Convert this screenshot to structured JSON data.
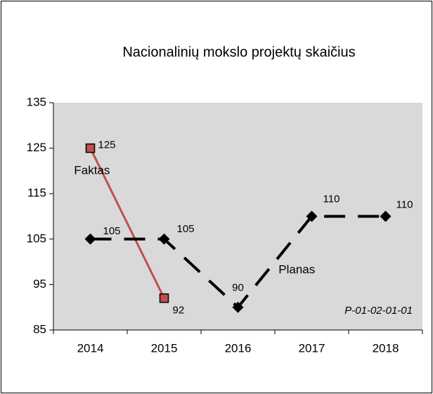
{
  "chart_data": {
    "type": "line",
    "title": "Nacionalinių mokslo projektų skaičius",
    "categories": [
      "2014",
      "2015",
      "2016",
      "2017",
      "2018"
    ],
    "series": [
      {
        "name": "Faktas",
        "color": "#c0504d",
        "values": [
          125,
          92,
          null,
          null,
          null
        ]
      },
      {
        "name": "Planas",
        "color": "#000000",
        "values": [
          105,
          105,
          90,
          110,
          110
        ]
      }
    ],
    "ylim": [
      85,
      135
    ],
    "yticks": [
      85,
      95,
      105,
      115,
      125,
      135
    ],
    "grid": false,
    "annotation": "P-01-02-01-01"
  }
}
